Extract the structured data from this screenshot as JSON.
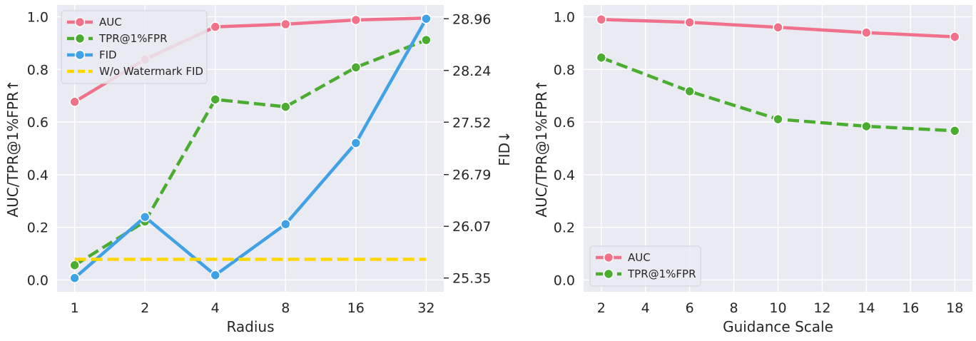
{
  "colors": {
    "auc": "#f2718a",
    "tpr": "#4aad2f",
    "fid": "#3fa1e6",
    "baseline": "#ffd700",
    "plot_bg": "#eaeaf2",
    "grid": "#ffffff"
  },
  "chart_data": [
    {
      "type": "line",
      "xlabel": "Radius",
      "ylabel": "AUC/TPR@1%FPR↑",
      "y2label": "FID↓",
      "x_scale": "log2",
      "categories": [
        "1",
        "2",
        "4",
        "8",
        "16",
        "32"
      ],
      "ylim": [
        -0.045,
        1.045
      ],
      "yticks": [
        "0.0",
        "0.2",
        "0.4",
        "0.6",
        "0.8",
        "1.0"
      ],
      "y2lim": [
        25.1585,
        29.1515
      ],
      "y2ticks": [
        "25.35",
        "26.07",
        "26.79",
        "27.52",
        "28.24",
        "28.96"
      ],
      "grid": true,
      "legend_position": "top-left",
      "series": [
        {
          "name": "AUC",
          "axis": "left",
          "style": "solid",
          "color_key": "auc",
          "values": [
            0.677,
            0.838,
            0.962,
            0.972,
            0.988,
            0.995
          ]
        },
        {
          "name": "TPR@1%FPR",
          "axis": "left",
          "style": "dashed",
          "color_key": "tpr",
          "values": [
            0.056,
            0.222,
            0.686,
            0.658,
            0.808,
            0.912
          ]
        },
        {
          "name": "FID",
          "axis": "right",
          "style": "solid",
          "color_key": "fid",
          "values": [
            25.35,
            26.2,
            25.39,
            26.1,
            27.23,
            28.96
          ]
        },
        {
          "name": "W/o Watermark FID",
          "axis": "right",
          "style": "dashed",
          "color_key": "baseline",
          "markers": false,
          "values": [
            25.61,
            25.61,
            25.61,
            25.61,
            25.61,
            25.61
          ]
        }
      ]
    },
    {
      "type": "line",
      "xlabel": "Guidance Scale",
      "ylabel": "AUC/TPR@1%FPR↑",
      "x": [
        2,
        6,
        10,
        14,
        18
      ],
      "xticks": [
        "2",
        "4",
        "6",
        "8",
        "10",
        "12",
        "14",
        "16",
        "18"
      ],
      "xlim": [
        1.2,
        18.8
      ],
      "ylim": [
        -0.045,
        1.045
      ],
      "yticks": [
        "0.0",
        "0.2",
        "0.4",
        "0.6",
        "0.8",
        "1.0"
      ],
      "grid": true,
      "legend_position": "bottom-left",
      "series": [
        {
          "name": "AUC",
          "style": "solid",
          "color_key": "auc",
          "values": [
            0.99,
            0.979,
            0.96,
            0.94,
            0.924
          ]
        },
        {
          "name": "TPR@1%FPR",
          "style": "dashed",
          "color_key": "tpr",
          "values": [
            0.845,
            0.717,
            0.611,
            0.584,
            0.567
          ]
        }
      ]
    }
  ]
}
